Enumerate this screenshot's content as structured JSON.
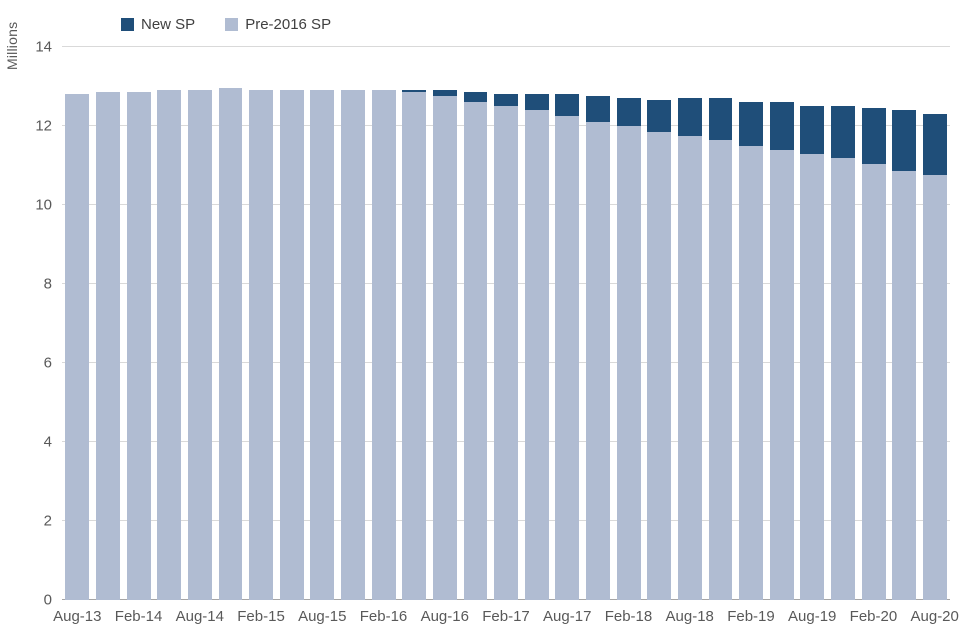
{
  "legend": {
    "items": [
      {
        "label": "New SP",
        "color": "#1f4e79"
      },
      {
        "label": "Pre-2016 SP",
        "color": "#b0bcd2"
      }
    ]
  },
  "y_axis": {
    "label": "Millions",
    "ticks": [
      0,
      2,
      4,
      6,
      8,
      10,
      12,
      14
    ],
    "max": 14
  },
  "chart_data": {
    "type": "bar",
    "stacked": true,
    "title": "",
    "xlabel": "",
    "ylabel": "Millions",
    "ylim": [
      0,
      14
    ],
    "grid": "horizontal",
    "legend_position": "top-left",
    "x_label_every": 2,
    "categories": [
      "Aug-13",
      "Nov-13",
      "Feb-14",
      "May-14",
      "Aug-14",
      "Nov-14",
      "Feb-15",
      "May-15",
      "Aug-15",
      "Nov-15",
      "Feb-16",
      "May-16",
      "Aug-16",
      "Nov-16",
      "Feb-17",
      "May-17",
      "Aug-17",
      "Nov-17",
      "Feb-18",
      "May-18",
      "Aug-18",
      "Nov-18",
      "Feb-19",
      "May-19",
      "Aug-19",
      "Nov-19",
      "Feb-20",
      "May-20",
      "Aug-20"
    ],
    "x_tick_labels": [
      "Aug-13",
      "Feb-14",
      "Aug-14",
      "Feb-15",
      "Aug-15",
      "Feb-16",
      "Aug-16",
      "Feb-17",
      "Aug-17",
      "Feb-18",
      "Aug-18",
      "Feb-19",
      "Aug-19",
      "Feb-20",
      "Aug-20"
    ],
    "series": [
      {
        "name": "New SP",
        "color": "#1f4e79",
        "values": [
          0,
          0,
          0,
          0,
          0,
          0,
          0,
          0,
          0,
          0,
          0,
          0.05,
          0.15,
          0.25,
          0.3,
          0.4,
          0.55,
          0.65,
          0.7,
          0.8,
          0.95,
          1.05,
          1.1,
          1.2,
          1.2,
          1.3,
          1.4,
          1.55,
          1.55
        ]
      },
      {
        "name": "Pre-2016 SP",
        "color": "#b0bcd2",
        "values": [
          12.8,
          12.85,
          12.85,
          12.9,
          12.9,
          12.95,
          12.9,
          12.9,
          12.9,
          12.9,
          12.9,
          12.85,
          12.75,
          12.6,
          12.5,
          12.4,
          12.25,
          12.1,
          12.0,
          11.85,
          11.75,
          11.65,
          11.5,
          11.4,
          11.3,
          11.2,
          11.05,
          10.85,
          10.75
        ]
      }
    ]
  }
}
